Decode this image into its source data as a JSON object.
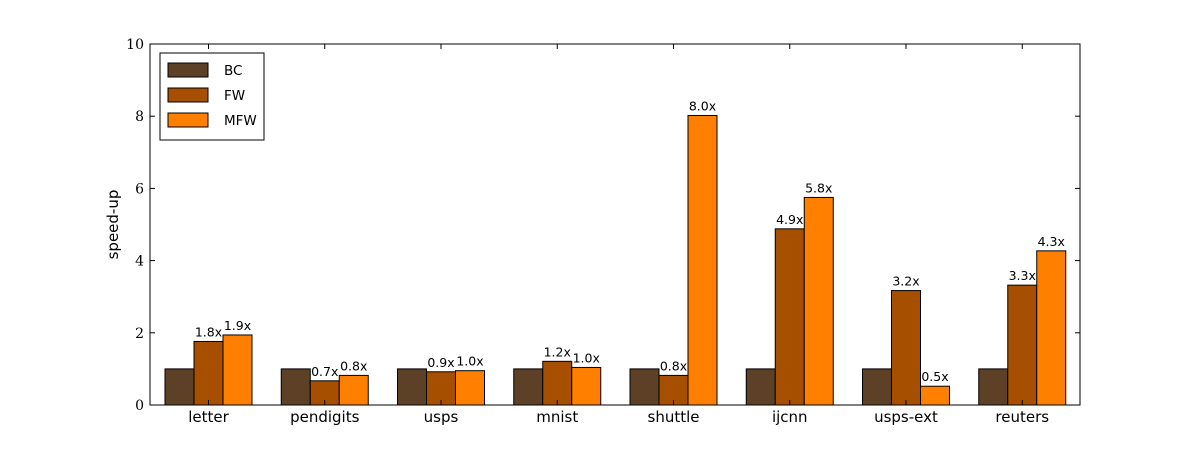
{
  "chart_data": {
    "type": "bar",
    "title": "",
    "xlabel": "",
    "ylabel": "speed-up",
    "ylim": [
      0,
      10
    ],
    "yticks": [
      "0",
      "2",
      "4",
      "6",
      "8",
      "10"
    ],
    "grid": false,
    "legend_position": "top-left",
    "categories": [
      "letter",
      "pendigits",
      "usps",
      "mnist",
      "shuttle",
      "ijcnn",
      "usps-ext",
      "reuters"
    ],
    "series": [
      {
        "name": "BC",
        "color": "#5c4126",
        "values": [
          1.0,
          1.0,
          1.0,
          1.0,
          1.0,
          1.0,
          1.0,
          1.0
        ],
        "labels": [
          "",
          "",
          "",
          "",
          "",
          "",
          "",
          ""
        ]
      },
      {
        "name": "FW",
        "color": "#a64f00",
        "values": [
          1.76,
          0.67,
          0.92,
          1.21,
          0.82,
          4.88,
          3.17,
          3.32
        ],
        "labels": [
          "1.8x",
          "0.7x",
          "0.9x",
          "1.2x",
          "0.8x",
          "4.9x",
          "3.2x",
          "3.3x"
        ]
      },
      {
        "name": "MFW",
        "color": "#ff7f00",
        "values": [
          1.94,
          0.82,
          0.95,
          1.04,
          8.02,
          5.75,
          0.52,
          4.27
        ],
        "labels": [
          "1.9x",
          "0.8x",
          "1.0x",
          "1.0x",
          "8.0x",
          "5.8x",
          "0.5x",
          "4.3x"
        ]
      }
    ]
  }
}
